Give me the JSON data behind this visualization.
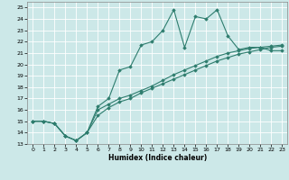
{
  "xlabel": "Humidex (Indice chaleur)",
  "bg_color": "#cce8e8",
  "line_color": "#2e7d6e",
  "grid_color": "#ffffff",
  "xlim": [
    -0.5,
    23.5
  ],
  "ylim": [
    13,
    25.5
  ],
  "xticks": [
    0,
    1,
    2,
    3,
    4,
    5,
    6,
    7,
    8,
    9,
    10,
    11,
    12,
    13,
    14,
    15,
    16,
    17,
    18,
    19,
    20,
    21,
    22,
    23
  ],
  "yticks": [
    13,
    14,
    15,
    16,
    17,
    18,
    19,
    20,
    21,
    22,
    23,
    24,
    25
  ],
  "series": [
    {
      "x": [
        0,
        1,
        2,
        3,
        4,
        5,
        6,
        7,
        8,
        9,
        10,
        11,
        12,
        13,
        14,
        15,
        16,
        17,
        18,
        19,
        20,
        21,
        22,
        23
      ],
      "y": [
        15,
        15,
        14.8,
        13.7,
        13.3,
        14,
        16.3,
        17,
        19.5,
        19.8,
        21.7,
        22,
        23,
        24.8,
        21.5,
        24.2,
        24,
        24.8,
        22.5,
        21.3,
        21.5,
        21.5,
        21.2,
        21.2
      ]
    },
    {
      "x": [
        0,
        1,
        2,
        3,
        4,
        5,
        6,
        7,
        8,
        9,
        10,
        11,
        12,
        13,
        14,
        15,
        16,
        17,
        18,
        19,
        20,
        21,
        22,
        23
      ],
      "y": [
        15,
        15,
        14.8,
        13.7,
        13.3,
        14,
        16,
        16.5,
        17,
        17.3,
        17.7,
        18.1,
        18.6,
        19.1,
        19.5,
        19.9,
        20.3,
        20.7,
        21.0,
        21.2,
        21.4,
        21.5,
        21.6,
        21.7
      ]
    },
    {
      "x": [
        0,
        1,
        2,
        3,
        4,
        5,
        6,
        7,
        8,
        9,
        10,
        11,
        12,
        13,
        14,
        15,
        16,
        17,
        18,
        19,
        20,
        21,
        22,
        23
      ],
      "y": [
        15,
        15,
        14.8,
        13.7,
        13.3,
        14,
        15.5,
        16.2,
        16.7,
        17.0,
        17.5,
        17.9,
        18.3,
        18.7,
        19.1,
        19.5,
        19.9,
        20.3,
        20.6,
        20.9,
        21.1,
        21.3,
        21.5,
        21.6
      ]
    }
  ]
}
